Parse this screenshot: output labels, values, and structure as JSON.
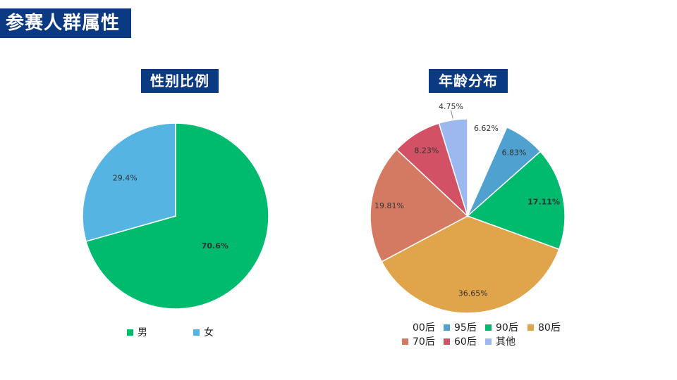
{
  "page": {
    "title": "参赛人群属性"
  },
  "chart_data": [
    {
      "type": "pie",
      "title": "性别比例",
      "categories": [
        "男",
        "女"
      ],
      "values": [
        70.6,
        29.4
      ],
      "labels": [
        "70.6%",
        "29.4%"
      ],
      "colors": [
        "#00bb6e",
        "#56b4e3"
      ],
      "legend": "bottom"
    },
    {
      "type": "pie",
      "title": "年龄分布",
      "categories": [
        "00后",
        "95后",
        "90后",
        "80后",
        "70后",
        "60后",
        "其他"
      ],
      "values": [
        6.62,
        6.83,
        17.11,
        36.65,
        19.81,
        8.23,
        4.75
      ],
      "labels": [
        "6.62%",
        "6.83%",
        "17.11%",
        "36.65%",
        "19.81%",
        "8.23%",
        "4.75%"
      ],
      "colors": [
        "#ffffff",
        "#4fa1d0",
        "#00bb6e",
        "#e0a54a",
        "#d47a62",
        "#d35165",
        "#9db8ee"
      ],
      "legend": "bottom"
    }
  ]
}
